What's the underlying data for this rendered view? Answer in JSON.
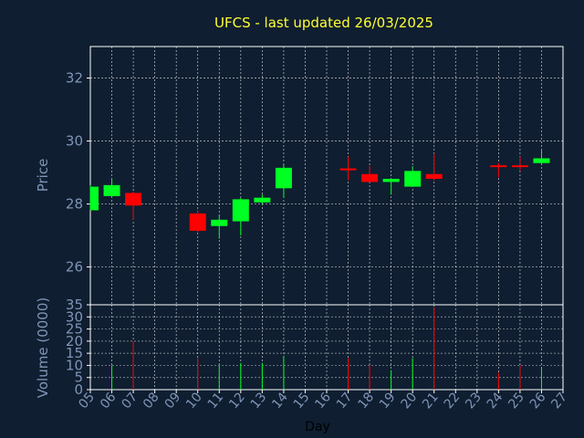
{
  "chart_data": [
    {
      "type": "candlestick",
      "title": "UFCS - last updated 26/03/2025",
      "ylabel": "Price",
      "ylim": [
        24.8,
        33.0
      ],
      "yticks": [
        26,
        28,
        30,
        32
      ],
      "x_ticks": [
        "05",
        "06",
        "07",
        "08",
        "09",
        "10",
        "11",
        "12",
        "13",
        "14",
        "15",
        "16",
        "17",
        "18",
        "19",
        "20",
        "21",
        "22",
        "23",
        "24",
        "25",
        "26",
        "27"
      ],
      "grid": true,
      "colors": {
        "up": "#00ff22",
        "down": "#ff0000",
        "grid": "#ffffff",
        "axis": "#ffffff",
        "background": "#0f1e30",
        "text": "#7f95b8",
        "title": "#ffff33"
      },
      "candles": [
        {
          "day": 5,
          "open": 27.8,
          "high": 28.6,
          "low": 27.8,
          "close": 28.55
        },
        {
          "day": 6,
          "open": 28.25,
          "high": 28.8,
          "low": 28.2,
          "close": 28.6
        },
        {
          "day": 7,
          "open": 28.35,
          "high": 28.4,
          "low": 27.5,
          "close": 27.95
        },
        {
          "day": 10,
          "open": 27.7,
          "high": 27.8,
          "low": 27.1,
          "close": 27.15
        },
        {
          "day": 11,
          "open": 27.3,
          "high": 27.65,
          "low": 26.9,
          "close": 27.5
        },
        {
          "day": 12,
          "open": 27.45,
          "high": 28.2,
          "low": 27.0,
          "close": 28.15
        },
        {
          "day": 13,
          "open": 28.05,
          "high": 28.3,
          "low": 28.0,
          "close": 28.2
        },
        {
          "day": 14,
          "open": 28.5,
          "high": 29.25,
          "low": 28.2,
          "close": 29.15
        },
        {
          "day": 17,
          "open": 29.1,
          "high": 29.5,
          "low": 28.75,
          "close": 29.05
        },
        {
          "day": 18,
          "open": 28.95,
          "high": 29.2,
          "low": 28.7,
          "close": 28.7
        },
        {
          "day": 19,
          "open": 28.7,
          "high": 28.8,
          "low": 28.3,
          "close": 28.8
        },
        {
          "day": 20,
          "open": 28.55,
          "high": 29.2,
          "low": 28.55,
          "close": 29.05
        },
        {
          "day": 21,
          "open": 28.95,
          "high": 29.6,
          "low": 28.75,
          "close": 28.8
        },
        {
          "day": 24,
          "open": 29.2,
          "high": 29.3,
          "low": 28.85,
          "close": 29.15
        },
        {
          "day": 25,
          "open": 29.2,
          "high": 29.5,
          "low": 29.05,
          "close": 29.15
        },
        {
          "day": 26,
          "open": 29.3,
          "high": 29.7,
          "low": 29.25,
          "close": 29.45
        }
      ]
    },
    {
      "type": "bar",
      "ylabel": "Volume (0000)",
      "xlabel": "Day",
      "ylim": [
        0,
        35
      ],
      "yticks": [
        0,
        5,
        10,
        15,
        20,
        25,
        30,
        35
      ],
      "x_ticks": [
        "05",
        "06",
        "07",
        "08",
        "09",
        "10",
        "11",
        "12",
        "13",
        "14",
        "15",
        "16",
        "17",
        "18",
        "19",
        "20",
        "21",
        "22",
        "23",
        "24",
        "25",
        "26",
        "27"
      ],
      "grid": true,
      "volumes": [
        {
          "day": 6,
          "volume": 10,
          "dir": "up"
        },
        {
          "day": 7,
          "volume": 20,
          "dir": "down"
        },
        {
          "day": 10,
          "volume": 13,
          "dir": "down"
        },
        {
          "day": 11,
          "volume": 10,
          "dir": "up"
        },
        {
          "day": 12,
          "volume": 11,
          "dir": "up"
        },
        {
          "day": 13,
          "volume": 11,
          "dir": "up"
        },
        {
          "day": 14,
          "volume": 14,
          "dir": "up"
        },
        {
          "day": 17,
          "volume": 13,
          "dir": "down"
        },
        {
          "day": 18,
          "volume": 10,
          "dir": "down"
        },
        {
          "day": 19,
          "volume": 8,
          "dir": "up"
        },
        {
          "day": 20,
          "volume": 13,
          "dir": "up"
        },
        {
          "day": 21,
          "volume": 34,
          "dir": "down"
        },
        {
          "day": 24,
          "volume": 7,
          "dir": "down"
        },
        {
          "day": 25,
          "volume": 10,
          "dir": "down"
        },
        {
          "day": 26,
          "volume": 9,
          "dir": "up"
        }
      ]
    }
  ]
}
